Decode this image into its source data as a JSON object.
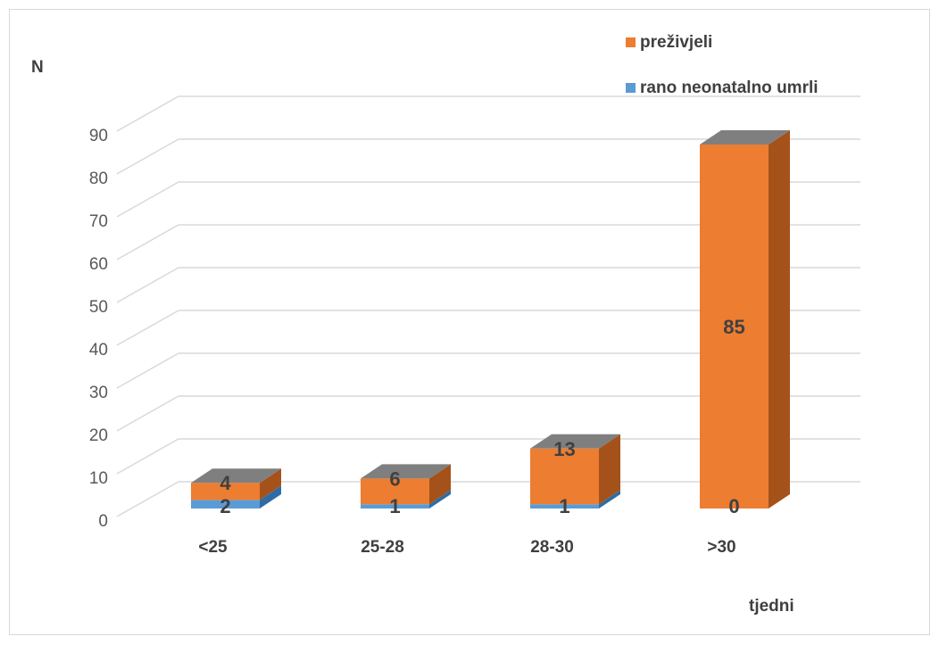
{
  "chart_data": {
    "type": "bar",
    "stacked": true,
    "style": "3d",
    "categories": [
      "<25",
      "25-28",
      "28-30",
      ">30"
    ],
    "series": [
      {
        "name": "rano neonatalno umrli",
        "values": [
          2,
          1,
          1,
          0
        ],
        "color": "#5b9bd5"
      },
      {
        "name": "preživjeli",
        "values": [
          4,
          6,
          13,
          85
        ],
        "color": "#ed7d31"
      }
    ],
    "ylabel": "N",
    "xlabel": "tjedni",
    "ylim": [
      0,
      90
    ],
    "yticks": [
      0,
      10,
      20,
      30,
      40,
      50,
      60,
      70,
      80,
      90
    ],
    "grid": true,
    "legend_position": "top-right"
  }
}
